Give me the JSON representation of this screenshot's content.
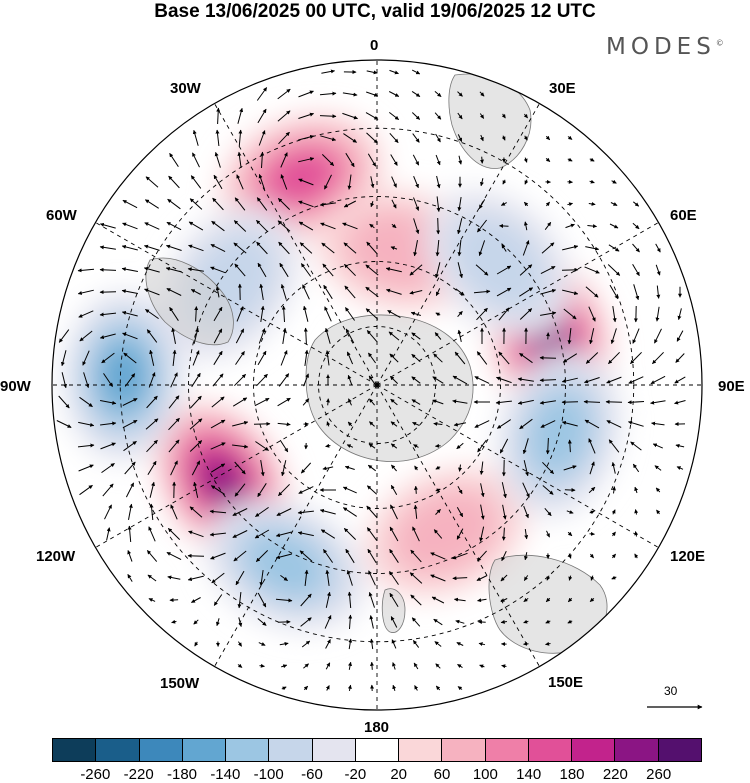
{
  "title": "Base 13/06/2025 00 UTC, valid 19/06/2025 12 UTC",
  "brand": "MODES",
  "brand_mark": "©",
  "longitude_labels": {
    "lon_0": "0",
    "lon_30e": "30E",
    "lon_60e": "60E",
    "lon_90e": "90E",
    "lon_120e": "120E",
    "lon_150e": "150E",
    "lon_180": "180",
    "lon_150w": "150W",
    "lon_120w": "120W",
    "lon_90w": "90W",
    "lon_60w": "60W",
    "lon_30w": "30W"
  },
  "reference_vector_value": "30",
  "colorbar": {
    "colors": [
      "#0d3d5a",
      "#1a5e8a",
      "#3d88bb",
      "#62a6d1",
      "#9cc6e3",
      "#c6d6ea",
      "#e4e4ef",
      "#ffffff",
      "#fad7d9",
      "#f6b2c0",
      "#ef7fa8",
      "#e15098",
      "#c2238c",
      "#8b1584",
      "#54106e"
    ],
    "tick_labels": [
      "-260",
      "-220",
      "-180",
      "-140",
      "-100",
      "-60",
      "-20",
      "20",
      "60",
      "100",
      "140",
      "180",
      "220",
      "260"
    ]
  },
  "anomaly_centres": [
    {
      "sign": "positive",
      "level": "220",
      "lon_deg": 75,
      "colat": 0.55
    },
    {
      "sign": "positive",
      "level": "220",
      "lon_deg": -122,
      "colat": 0.56
    },
    {
      "sign": "positive",
      "level": "140",
      "lon_deg": -20,
      "colat": 0.68
    },
    {
      "sign": "positive",
      "level": "60",
      "lon_deg": 155,
      "colat": 0.5
    },
    {
      "sign": "positive",
      "level": "60",
      "lon_deg": 10,
      "colat": 0.42
    },
    {
      "sign": "negative",
      "level": "-180",
      "lon_deg": -88,
      "colat": 0.78
    },
    {
      "sign": "negative",
      "level": "-140",
      "lon_deg": 105,
      "colat": 0.58
    },
    {
      "sign": "negative",
      "level": "-140",
      "lon_deg": -153,
      "colat": 0.62
    },
    {
      "sign": "negative",
      "level": "-100",
      "lon_deg": 45,
      "colat": 0.53
    },
    {
      "sign": "negative",
      "level": "-100",
      "lon_deg": -55,
      "colat": 0.55
    }
  ]
}
